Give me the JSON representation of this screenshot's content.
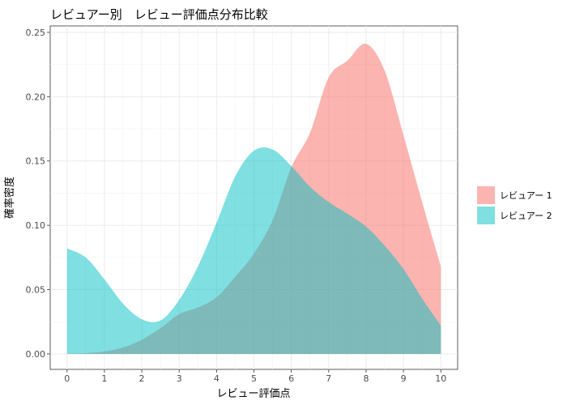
{
  "chart_data": {
    "type": "area",
    "title": "レビュアー別　レビュー評価点分布比較",
    "xlabel": "レビュー評価点",
    "ylabel": "確率密度",
    "xlim": [
      -0.45,
      10.45
    ],
    "ylim": [
      -0.012,
      0.255
    ],
    "x_ticks": [
      0,
      1,
      2,
      3,
      4,
      5,
      6,
      7,
      8,
      9,
      10
    ],
    "y_ticks": [
      0.0,
      0.05,
      0.1,
      0.15,
      0.2,
      0.25
    ],
    "y_tick_labels": [
      "0.00",
      "0.05",
      "0.10",
      "0.15",
      "0.20",
      "0.25"
    ],
    "grid": true,
    "legend_position": "right",
    "series": [
      {
        "name": "レビュアー 1",
        "color": "#F8766D",
        "opacity": 0.55,
        "x": [
          0.0,
          0.5,
          1.0,
          1.5,
          2.0,
          2.5,
          3.0,
          3.5,
          4.0,
          4.5,
          5.0,
          5.5,
          6.0,
          6.5,
          7.0,
          7.5,
          8.0,
          8.5,
          9.0,
          9.5,
          10.0
        ],
        "y": [
          0.0,
          0.0005,
          0.002,
          0.005,
          0.011,
          0.02,
          0.031,
          0.036,
          0.044,
          0.06,
          0.078,
          0.104,
          0.145,
          0.172,
          0.215,
          0.228,
          0.241,
          0.22,
          0.17,
          0.118,
          0.068
        ]
      },
      {
        "name": "レビュアー 2",
        "color": "#00BFC4",
        "opacity": 0.5,
        "x": [
          0.0,
          0.5,
          1.0,
          1.5,
          2.0,
          2.5,
          3.0,
          3.5,
          4.0,
          4.5,
          5.0,
          5.5,
          6.0,
          6.5,
          7.0,
          7.5,
          8.0,
          8.5,
          9.0,
          9.5,
          10.0
        ],
        "y": [
          0.082,
          0.075,
          0.058,
          0.039,
          0.027,
          0.026,
          0.042,
          0.068,
          0.102,
          0.138,
          0.158,
          0.159,
          0.146,
          0.13,
          0.118,
          0.109,
          0.099,
          0.084,
          0.066,
          0.043,
          0.022
        ]
      }
    ]
  }
}
